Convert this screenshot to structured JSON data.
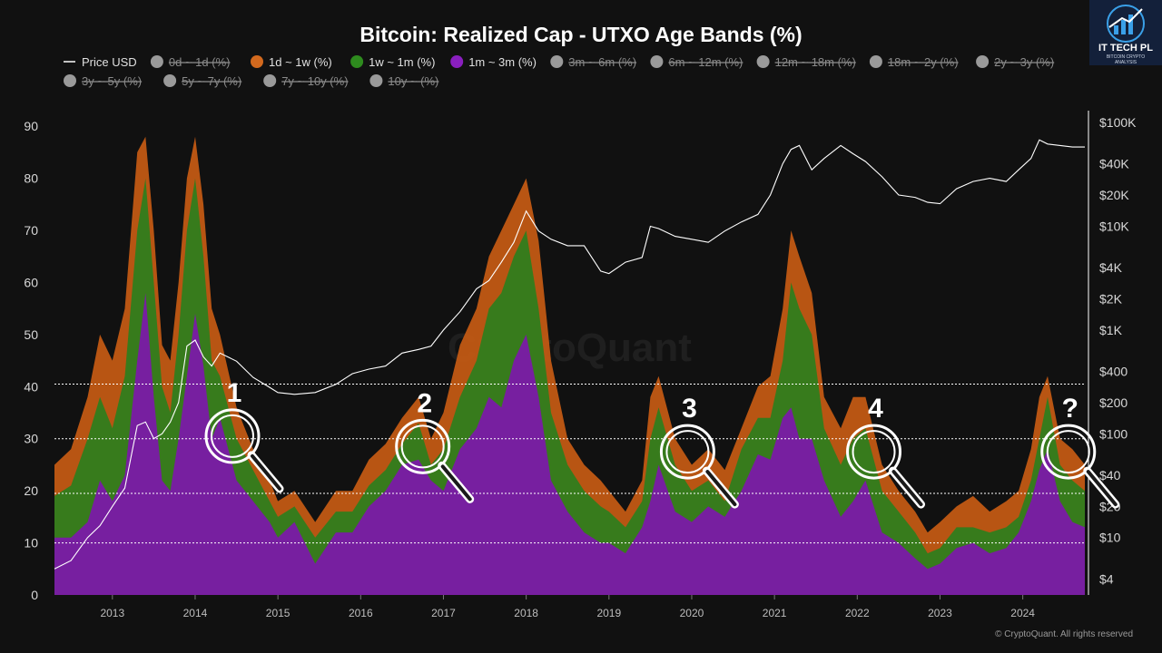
{
  "chart_data": {
    "type": "area",
    "title": "Bitcoin: Realized Cap - UTXO Age Bands (%)",
    "legend": [
      {
        "label": "Price USD",
        "kind": "line",
        "color": "#ffffff",
        "enabled": true
      },
      {
        "label": "0d ~ 1d (%)",
        "color": "#9a9a9a",
        "enabled": false
      },
      {
        "label": "1d ~ 1w (%)",
        "color": "#d2691e",
        "enabled": true
      },
      {
        "label": "1w ~ 1m (%)",
        "color": "#2e8b1e",
        "enabled": true
      },
      {
        "label": "1m ~ 3m (%)",
        "color": "#8a1fbf",
        "enabled": true
      },
      {
        "label": "3m ~ 6m (%)",
        "color": "#9a9a9a",
        "enabled": false
      },
      {
        "label": "6m ~ 12m (%)",
        "color": "#9a9a9a",
        "enabled": false
      },
      {
        "label": "12m ~ 18m (%)",
        "color": "#9a9a9a",
        "enabled": false
      },
      {
        "label": "18m ~ 2y (%)",
        "color": "#9a9a9a",
        "enabled": false
      },
      {
        "label": "2y ~ 3y (%)",
        "color": "#9a9a9a",
        "enabled": false
      },
      {
        "label": "3y ~ 5y (%)",
        "color": "#9a9a9a",
        "enabled": false
      },
      {
        "label": "5y ~ 7y (%)",
        "color": "#9a9a9a",
        "enabled": false
      },
      {
        "label": "7y ~ 10y (%)",
        "color": "#9a9a9a",
        "enabled": false
      },
      {
        "label": "10y ~ (%)",
        "color": "#9a9a9a",
        "enabled": false
      }
    ],
    "x_ticks": [
      "2013",
      "2014",
      "2015",
      "2016",
      "2017",
      "2018",
      "2019",
      "2020",
      "2021",
      "2022",
      "2023",
      "2024"
    ],
    "x_range": [
      2012.3,
      2024.75
    ],
    "y_left": {
      "ticks": [
        0,
        10,
        20,
        30,
        40,
        50,
        60,
        70,
        80,
        90
      ],
      "range": [
        0,
        93
      ]
    },
    "y_right": {
      "ticks": [
        "$100K",
        "$40K",
        "$20K",
        "$10K",
        "$4K",
        "$2K",
        "$1K",
        "$400",
        "$200",
        "$100",
        "$40",
        "$20",
        "$10",
        "$4"
      ],
      "tick_values": [
        100000,
        40000,
        20000,
        10000,
        4000,
        2000,
        1000,
        400,
        200,
        100,
        40,
        20,
        10,
        4
      ],
      "scale": "log",
      "range": [
        2.8,
        130000
      ]
    },
    "reference_lines": [
      10,
      19.5,
      30,
      40.5
    ],
    "x": [
      2012.3,
      2012.5,
      2012.7,
      2012.85,
      2013.0,
      2013.15,
      2013.3,
      2013.4,
      2013.5,
      2013.6,
      2013.7,
      2013.8,
      2013.9,
      2014.0,
      2014.1,
      2014.2,
      2014.3,
      2014.5,
      2014.7,
      2014.9,
      2015.0,
      2015.2,
      2015.45,
      2015.7,
      2015.9,
      2016.1,
      2016.3,
      2016.5,
      2016.7,
      2016.85,
      2017.0,
      2017.2,
      2017.4,
      2017.55,
      2017.7,
      2017.85,
      2018.0,
      2018.15,
      2018.3,
      2018.5,
      2018.7,
      2018.9,
      2019.0,
      2019.2,
      2019.4,
      2019.5,
      2019.6,
      2019.8,
      2020.0,
      2020.2,
      2020.4,
      2020.6,
      2020.8,
      2020.95,
      2021.1,
      2021.2,
      2021.3,
      2021.45,
      2021.6,
      2021.8,
      2021.95,
      2022.1,
      2022.3,
      2022.5,
      2022.7,
      2022.85,
      2023.0,
      2023.2,
      2023.4,
      2023.6,
      2023.8,
      2023.95,
      2024.1,
      2024.2,
      2024.3,
      2024.45,
      2024.6,
      2024.75
    ],
    "series": [
      {
        "name": "1m ~ 3m (%)",
        "values": [
          11,
          11,
          14,
          22,
          18,
          23,
          45,
          58,
          38,
          22,
          20,
          30,
          42,
          54,
          44,
          30,
          34,
          22,
          18,
          14,
          11,
          14,
          6,
          12,
          12,
          17,
          20,
          25,
          26,
          22,
          20,
          28,
          32,
          38,
          36,
          45,
          50,
          38,
          22,
          16,
          12,
          10,
          10,
          8,
          13,
          18,
          25,
          16,
          14,
          17,
          15,
          20,
          27,
          26,
          34,
          36,
          30,
          30,
          22,
          15,
          18,
          22,
          12,
          10,
          7,
          5,
          6,
          9,
          10,
          8,
          9,
          12,
          18,
          24,
          28,
          18,
          14,
          13
        ]
      },
      {
        "name": "1w ~ 1m (%)",
        "values": [
          19,
          21,
          30,
          38,
          32,
          42,
          70,
          80,
          60,
          40,
          35,
          50,
          70,
          80,
          65,
          45,
          42,
          30,
          24,
          18,
          15,
          17,
          11,
          16,
          16,
          21,
          24,
          29,
          33,
          25,
          28,
          38,
          45,
          55,
          58,
          65,
          70,
          55,
          35,
          25,
          20,
          17,
          16,
          13,
          18,
          30,
          36,
          25,
          20,
          22,
          18,
          28,
          34,
          34,
          45,
          60,
          55,
          50,
          32,
          25,
          30,
          32,
          20,
          16,
          12,
          8,
          9,
          13,
          13,
          12,
          13,
          15,
          22,
          30,
          38,
          25,
          22,
          20
        ]
      },
      {
        "name": "1d ~ 1w (%)",
        "values": [
          25,
          28,
          38,
          50,
          45,
          55,
          85,
          88,
          70,
          48,
          45,
          60,
          80,
          88,
          75,
          55,
          50,
          36,
          28,
          22,
          18,
          20,
          14,
          20,
          20,
          26,
          29,
          34,
          38,
          30,
          35,
          48,
          55,
          65,
          70,
          75,
          80,
          68,
          45,
          30,
          25,
          22,
          20,
          16,
          22,
          38,
          42,
          30,
          25,
          28,
          24,
          32,
          40,
          42,
          55,
          70,
          65,
          58,
          38,
          32,
          38,
          38,
          25,
          20,
          16,
          12,
          14,
          17,
          19,
          16,
          18,
          20,
          28,
          38,
          42,
          30,
          28,
          25
        ]
      },
      {
        "name": "Price USD",
        "values": [
          5,
          6,
          10,
          13,
          20,
          30,
          120,
          130,
          90,
          100,
          130,
          200,
          700,
          800,
          550,
          450,
          600,
          500,
          350,
          280,
          250,
          240,
          250,
          300,
          380,
          420,
          450,
          600,
          650,
          700,
          1000,
          1500,
          2500,
          3000,
          4500,
          7000,
          14000,
          9000,
          7500,
          6500,
          6500,
          3700,
          3500,
          4500,
          5000,
          10000,
          9500,
          8000,
          7500,
          7000,
          9000,
          11000,
          13000,
          20000,
          40000,
          55000,
          60000,
          35000,
          45000,
          60000,
          50000,
          42000,
          30000,
          20000,
          19000,
          17000,
          16500,
          23000,
          27000,
          29000,
          27000,
          35000,
          45000,
          68000,
          62000,
          60000,
          58000,
          58000
        ]
      }
    ],
    "annotations": [
      {
        "label": "1",
        "x": 2014.45,
        "y": 30.5
      },
      {
        "label": "2",
        "x": 2016.75,
        "y": 28.5
      },
      {
        "label": "3",
        "x": 2019.95,
        "y": 27.5
      },
      {
        "label": "4",
        "x": 2022.2,
        "y": 27.5
      },
      {
        "label": "?",
        "x": 2024.55,
        "y": 27.5
      }
    ],
    "watermark": "CryptoQuant",
    "footer": "© CryptoQuant. All rights reserved"
  },
  "logo": {
    "name": "IT TECH PL",
    "sub": [
      "BITCOIN CRYPTO",
      "ANALYSIS"
    ]
  }
}
